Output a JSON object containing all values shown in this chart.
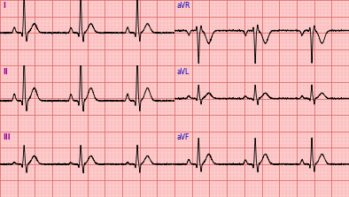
{
  "bg_color": "#ffcccc",
  "grid_major_color": "#dd6666",
  "grid_minor_color": "#eeaaaa",
  "line_color": "#000000",
  "label_color_roman": "#990099",
  "label_color_av": "#0000bb",
  "figsize": [
    3.94,
    2.23
  ],
  "dpi": 100,
  "leads_left": [
    "I",
    "II",
    "III"
  ],
  "leads_right": [
    "aVR",
    "aVL",
    "aVF"
  ]
}
